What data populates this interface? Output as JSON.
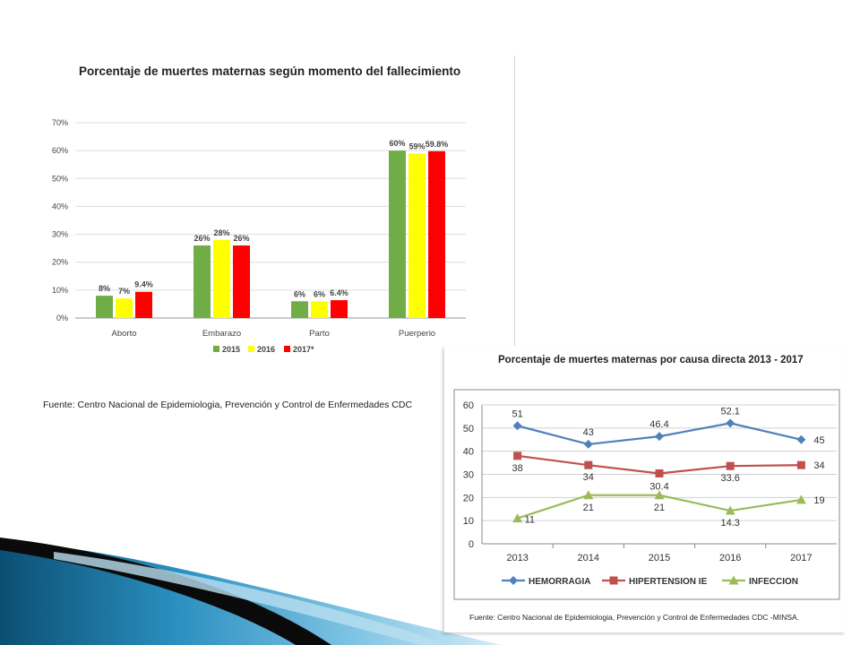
{
  "colors": {
    "2015": "#70ad47",
    "2016": "#ffff00",
    "2017": "#ff0000",
    "hemorragia": "#4f81bd",
    "hipertension": "#c0504d",
    "infeccion": "#9bbb59"
  },
  "chart_data": [
    {
      "type": "bar",
      "title": "Porcentaje de muertes maternas según momento del fallecimiento",
      "categories": [
        "Aborto",
        "Embarazo",
        "Parto",
        "Puerperio"
      ],
      "series": [
        {
          "name": "2015",
          "values": [
            8,
            26,
            6,
            60
          ],
          "labels": [
            "8%",
            "26%",
            "6%",
            "60%"
          ]
        },
        {
          "name": "2016",
          "values": [
            7,
            28,
            6,
            59
          ],
          "labels": [
            "7%",
            "28%",
            "6%",
            "59%"
          ]
        },
        {
          "name": "2017*",
          "values": [
            9.4,
            26,
            6.4,
            59.8
          ],
          "labels": [
            "9.4%",
            "26%",
            "6.4%",
            "59.8%"
          ]
        }
      ],
      "yticks": [
        "0%",
        "10%",
        "20%",
        "30%",
        "40%",
        "50%",
        "60%",
        "70%"
      ],
      "ylim": [
        0,
        70
      ],
      "grid": true,
      "legend": "bottom",
      "source": "Fuente: Centro Nacional de Epidemiologia, Prevención y Control de Enfermedades CDC"
    },
    {
      "type": "line",
      "title": "Porcentaje de muertes maternas por causa directa  2013 - 2017",
      "x": [
        "2013",
        "2014",
        "2015",
        "2016",
        "2017"
      ],
      "series": [
        {
          "name": "HEMORRAGIA",
          "values": [
            51,
            43,
            46.4,
            52.1,
            45
          ],
          "labels": [
            "51",
            "43",
            "46.4",
            "52.1",
            "45"
          ],
          "marker": "diamond"
        },
        {
          "name": "HIPERTENSION IE",
          "values": [
            38,
            34,
            30.4,
            33.6,
            34
          ],
          "labels": [
            "38",
            "34",
            "30.4",
            "33.6",
            "34"
          ],
          "marker": "square"
        },
        {
          "name": "INFECCION",
          "values": [
            11,
            21,
            21,
            14.3,
            19
          ],
          "labels": [
            "11",
            "21",
            "21",
            "14.3",
            "19"
          ],
          "marker": "triangle"
        }
      ],
      "yticks": [
        "0",
        "10",
        "20",
        "30",
        "40",
        "50",
        "60"
      ],
      "ylim": [
        0,
        60
      ],
      "grid": true,
      "legend": "bottom",
      "source": "Fuente: Centro Nacional de Epidemiologia, Prevención y Control de Enfermedades CDC -MINSA."
    }
  ]
}
